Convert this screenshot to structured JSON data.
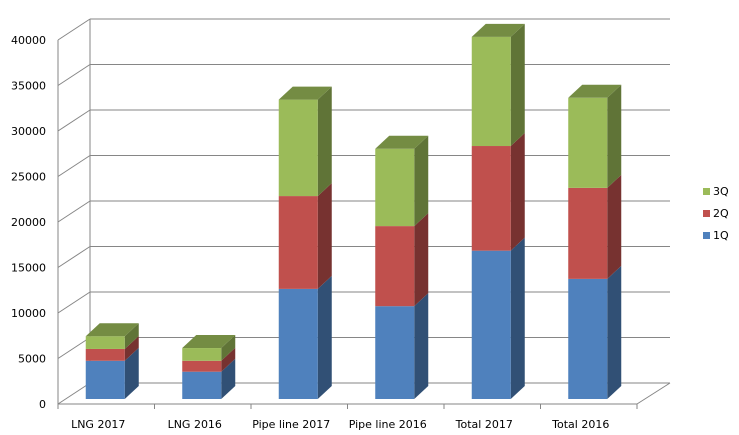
{
  "chart_data": {
    "type": "bar",
    "stacked": true,
    "three_d": true,
    "title": "",
    "xlabel": "",
    "ylabel": "",
    "ylim": [
      0,
      40000
    ],
    "yticks": [
      "0",
      "5000",
      "10000",
      "15000",
      "20000",
      "25000",
      "30000",
      "35000",
      "40000"
    ],
    "grid": true,
    "legend_position": "right",
    "categories": [
      "LNG 2017",
      "LNG 2016",
      "Pipe line 2017",
      "Pipe line 2016",
      "Total 2017",
      "Total 2016"
    ],
    "series": [
      {
        "name": "1Q",
        "color": "#4f81bd",
        "values": [
          4200,
          3000,
          12100,
          10200,
          16300,
          13200
        ]
      },
      {
        "name": "2Q",
        "color": "#c0504d",
        "values": [
          1300,
          1200,
          10200,
          8800,
          11500,
          10000
        ]
      },
      {
        "name": "3Q",
        "color": "#9bbb59",
        "values": [
          1400,
          1400,
          10600,
          8500,
          12000,
          9900
        ]
      }
    ]
  }
}
